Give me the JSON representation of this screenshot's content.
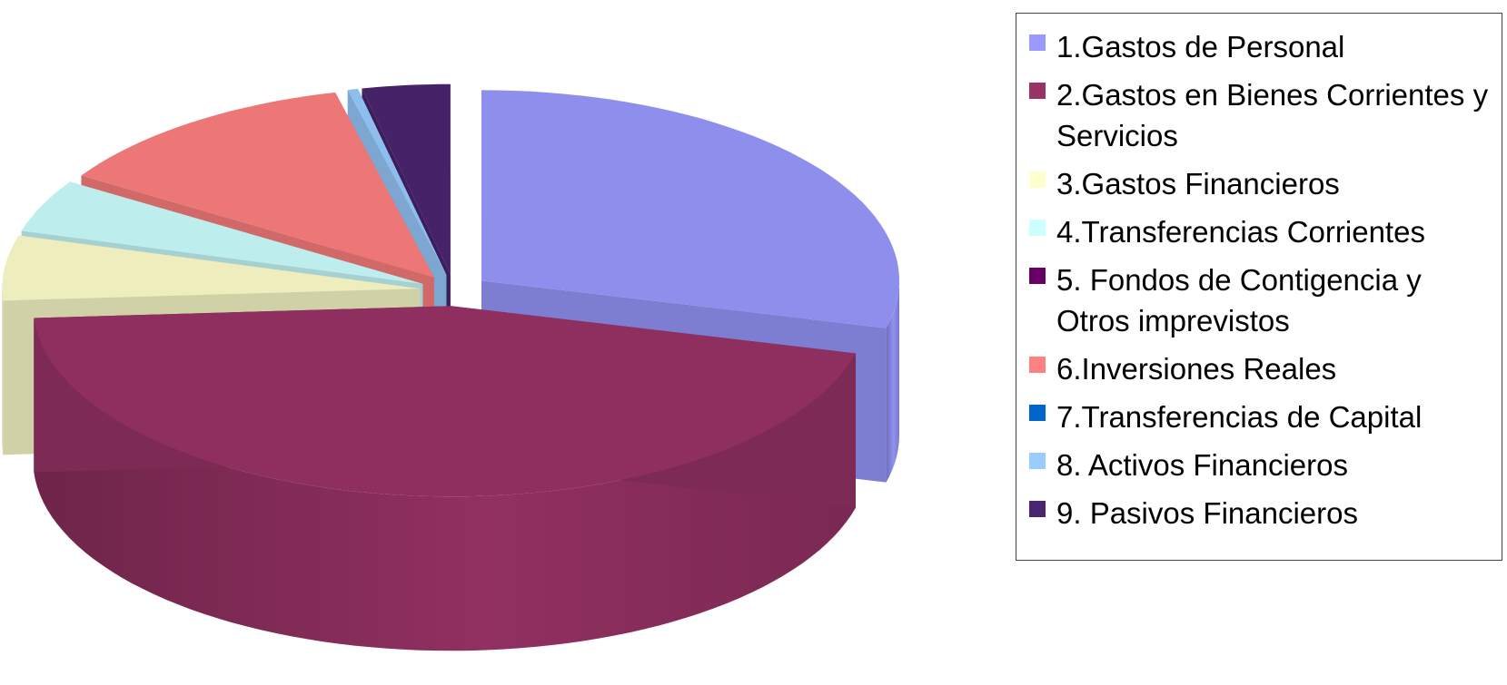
{
  "chart_data": {
    "type": "pie",
    "title": "",
    "legend_position": "right",
    "categories": [
      "1.Gastos de Personal",
      "2.Gastos en Bienes Corrientes y Servicios",
      "3.Gastos Financieros",
      "4.Transferencias Corrientes",
      "5. Fondos de Contigencia y Otros imprevistos",
      "6.Inversiones Reales",
      "7.Transferencias de Capital",
      "8. Activos Financieros",
      "9. Pasivos Financieros"
    ],
    "values": [
      29.0,
      45.0,
      5.5,
      4.5,
      0,
      12.2,
      0,
      0.4,
      3.4
    ],
    "colors": [
      "#9999ff",
      "#993366",
      "#ffffcc",
      "#ccffff",
      "#660066",
      "#ff8080",
      "#0066cc",
      "#99ccff",
      "#4b2571"
    ],
    "exploded": true,
    "perspective": "3d"
  }
}
